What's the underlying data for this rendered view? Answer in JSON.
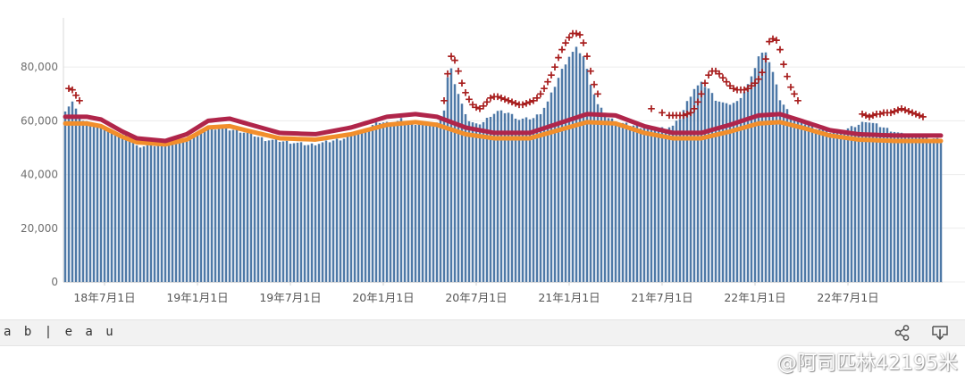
{
  "chart_data": {
    "type": "bar",
    "title": "",
    "xlabel": "",
    "ylabel": "",
    "ylim": [
      0,
      95000
    ],
    "yticks": [
      0,
      20000,
      40000,
      60000,
      80000
    ],
    "ytick_labels": [
      "0",
      "20,000",
      "40,000",
      "60,000",
      "80,000"
    ],
    "xtick_labels": [
      "18年7月1日",
      "19年1月1日",
      "19年7月1日",
      "20年1月1日",
      "20年7月1日",
      "21年1月1日",
      "21年7月1日",
      "22年1月1日",
      "22年7月1日"
    ],
    "xtick_positions": [
      11,
      37,
      63,
      89,
      115,
      141,
      167,
      193,
      219
    ],
    "grid": "horizontal",
    "n_weeks": 246,
    "colors": {
      "bars": "#4e79a7",
      "upper_line": "#b0254a",
      "lower_line": "#f28e2b",
      "markers": "#a81e1e"
    },
    "weekly_deaths_anchors": [
      [
        0,
        64000
      ],
      [
        2,
        67000
      ],
      [
        3,
        64000
      ],
      [
        5,
        60000
      ],
      [
        9,
        58000
      ],
      [
        14,
        56000
      ],
      [
        19,
        53000
      ],
      [
        20,
        50500
      ],
      [
        24,
        50800
      ],
      [
        30,
        51500
      ],
      [
        36,
        54000
      ],
      [
        40,
        57500
      ],
      [
        44,
        57000
      ],
      [
        48,
        56500
      ],
      [
        52,
        55000
      ],
      [
        56,
        53000
      ],
      [
        60,
        52500
      ],
      [
        66,
        51500
      ],
      [
        68,
        51000
      ],
      [
        72,
        51800
      ],
      [
        78,
        53500
      ],
      [
        84,
        57000
      ],
      [
        88,
        59500
      ],
      [
        92,
        59000
      ],
      [
        94,
        60500
      ],
      [
        98,
        59000
      ],
      [
        102,
        58500
      ],
      [
        104,
        59000
      ],
      [
        106,
        64000
      ],
      [
        107,
        76000
      ],
      [
        108,
        79000
      ],
      [
        109,
        74000
      ],
      [
        111,
        66000
      ],
      [
        113,
        60000
      ],
      [
        115,
        58500
      ],
      [
        117,
        59500
      ],
      [
        119,
        62000
      ],
      [
        121,
        63500
      ],
      [
        124,
        63000
      ],
      [
        127,
        60500
      ],
      [
        131,
        61000
      ],
      [
        133,
        63000
      ],
      [
        135,
        67000
      ],
      [
        137,
        73000
      ],
      [
        139,
        79000
      ],
      [
        141,
        84000
      ],
      [
        143,
        87000
      ],
      [
        145,
        84000
      ],
      [
        147,
        74000
      ],
      [
        149,
        66000
      ],
      [
        152,
        61000
      ],
      [
        156,
        59000
      ],
      [
        162,
        57500
      ],
      [
        166,
        57000
      ],
      [
        170,
        58000
      ],
      [
        172,
        61000
      ],
      [
        174,
        67000
      ],
      [
        176,
        72000
      ],
      [
        178,
        74000
      ],
      [
        180,
        72000
      ],
      [
        182,
        68000
      ],
      [
        185,
        66000
      ],
      [
        188,
        67000
      ],
      [
        190,
        71000
      ],
      [
        192,
        76000
      ],
      [
        194,
        84000
      ],
      [
        196,
        86000
      ],
      [
        198,
        78000
      ],
      [
        200,
        68000
      ],
      [
        203,
        62000
      ],
      [
        207,
        59000
      ],
      [
        211,
        57000
      ],
      [
        215,
        55500
      ],
      [
        219,
        57000
      ],
      [
        222,
        58500
      ],
      [
        224,
        60000
      ],
      [
        227,
        58500
      ],
      [
        230,
        57000
      ],
      [
        234,
        55000
      ],
      [
        238,
        54500
      ],
      [
        245,
        53000
      ]
    ],
    "upper_threshold_anchors": [
      [
        0,
        61500
      ],
      [
        6,
        61500
      ],
      [
        10,
        60500
      ],
      [
        16,
        56000
      ],
      [
        20,
        53500
      ],
      [
        28,
        52500
      ],
      [
        34,
        55000
      ],
      [
        40,
        60000
      ],
      [
        46,
        60800
      ],
      [
        52,
        58500
      ],
      [
        60,
        55500
      ],
      [
        70,
        55000
      ],
      [
        80,
        57500
      ],
      [
        90,
        61500
      ],
      [
        98,
        62500
      ],
      [
        104,
        61500
      ],
      [
        112,
        57500
      ],
      [
        120,
        55500
      ],
      [
        130,
        55500
      ],
      [
        138,
        59000
      ],
      [
        146,
        62500
      ],
      [
        154,
        62000
      ],
      [
        162,
        58000
      ],
      [
        170,
        55500
      ],
      [
        178,
        55500
      ],
      [
        186,
        58500
      ],
      [
        194,
        62000
      ],
      [
        200,
        62500
      ],
      [
        206,
        60000
      ],
      [
        214,
        56500
      ],
      [
        222,
        55000
      ],
      [
        232,
        54500
      ],
      [
        245,
        54500
      ]
    ],
    "lower_threshold_anchors": [
      [
        0,
        59000
      ],
      [
        6,
        59000
      ],
      [
        10,
        58000
      ],
      [
        16,
        54000
      ],
      [
        20,
        52000
      ],
      [
        28,
        51200
      ],
      [
        34,
        53000
      ],
      [
        40,
        57500
      ],
      [
        46,
        58000
      ],
      [
        52,
        56000
      ],
      [
        60,
        53500
      ],
      [
        70,
        53000
      ],
      [
        80,
        55000
      ],
      [
        90,
        58500
      ],
      [
        98,
        59500
      ],
      [
        104,
        58500
      ],
      [
        112,
        55000
      ],
      [
        120,
        53500
      ],
      [
        130,
        53500
      ],
      [
        138,
        56500
      ],
      [
        146,
        59500
      ],
      [
        154,
        59000
      ],
      [
        162,
        55500
      ],
      [
        170,
        53500
      ],
      [
        178,
        53500
      ],
      [
        186,
        56000
      ],
      [
        194,
        59000
      ],
      [
        200,
        59500
      ],
      [
        206,
        57500
      ],
      [
        214,
        54500
      ],
      [
        222,
        53000
      ],
      [
        232,
        52500
      ],
      [
        245,
        52500
      ]
    ],
    "excess_marker_anchors": [
      [
        [
          1,
          72000
        ],
        [
          2,
          71500
        ],
        [
          3,
          69500
        ],
        [
          4,
          67500
        ]
      ],
      [
        [
          106,
          67500
        ],
        [
          107,
          77500
        ],
        [
          108,
          84000
        ],
        [
          109,
          82500
        ],
        [
          110,
          78500
        ],
        [
          111,
          74000
        ],
        [
          112,
          70500
        ],
        [
          113,
          68000
        ],
        [
          114,
          66000
        ],
        [
          115,
          65000
        ],
        [
          116,
          64500
        ],
        [
          117,
          65500
        ],
        [
          118,
          67000
        ],
        [
          119,
          68500
        ],
        [
          120,
          69000
        ],
        [
          121,
          69000
        ],
        [
          122,
          68500
        ],
        [
          123,
          68000
        ],
        [
          124,
          67500
        ],
        [
          125,
          67000
        ],
        [
          126,
          66500
        ],
        [
          127,
          66000
        ],
        [
          128,
          66000
        ],
        [
          129,
          66500
        ],
        [
          130,
          67000
        ],
        [
          131,
          67500
        ],
        [
          132,
          68500
        ],
        [
          133,
          70000
        ],
        [
          134,
          72000
        ],
        [
          135,
          74500
        ],
        [
          136,
          77000
        ],
        [
          137,
          80000
        ],
        [
          138,
          83500
        ],
        [
          139,
          86500
        ],
        [
          140,
          89000
        ],
        [
          141,
          91000
        ],
        [
          142,
          92500
        ],
        [
          143,
          92500
        ],
        [
          144,
          92000
        ],
        [
          145,
          89000
        ],
        [
          146,
          84000
        ],
        [
          147,
          78500
        ],
        [
          148,
          73500
        ],
        [
          149,
          70000
        ]
      ],
      [
        [
          164,
          64500
        ],
        [
          167,
          63000
        ],
        [
          169,
          62000
        ],
        [
          170,
          62000
        ],
        [
          171,
          62000
        ],
        [
          172,
          62000
        ],
        [
          173,
          62000
        ],
        [
          174,
          62500
        ],
        [
          175,
          63000
        ],
        [
          176,
          64500
        ],
        [
          177,
          67000
        ],
        [
          178,
          70000
        ],
        [
          179,
          74000
        ],
        [
          180,
          77000
        ],
        [
          181,
          78500
        ],
        [
          182,
          78500
        ],
        [
          183,
          77500
        ],
        [
          184,
          76000
        ],
        [
          185,
          74500
        ],
        [
          186,
          73000
        ],
        [
          187,
          72000
        ],
        [
          188,
          71500
        ],
        [
          189,
          71500
        ],
        [
          190,
          71500
        ],
        [
          191,
          72000
        ],
        [
          192,
          73000
        ],
        [
          193,
          74000
        ],
        [
          194,
          75500
        ],
        [
          195,
          78000
        ],
        [
          196,
          83000
        ],
        [
          197,
          89500
        ],
        [
          198,
          90500
        ],
        [
          199,
          90000
        ],
        [
          200,
          86500
        ],
        [
          201,
          81000
        ],
        [
          202,
          76500
        ],
        [
          203,
          72500
        ],
        [
          204,
          70000
        ],
        [
          205,
          67500
        ]
      ],
      [
        [
          223,
          62500
        ],
        [
          224,
          62000
        ],
        [
          225,
          61500
        ],
        [
          226,
          62000
        ],
        [
          227,
          62500
        ],
        [
          228,
          62500
        ],
        [
          229,
          63000
        ],
        [
          230,
          63000
        ],
        [
          231,
          63000
        ],
        [
          232,
          63500
        ],
        [
          233,
          64000
        ],
        [
          234,
          64500
        ],
        [
          235,
          64000
        ],
        [
          236,
          63500
        ],
        [
          237,
          63000
        ],
        [
          238,
          62500
        ],
        [
          239,
          62000
        ],
        [
          240,
          61500
        ]
      ]
    ]
  },
  "toolbar": {
    "logo_text": "a b | e a u"
  },
  "watermark": {
    "text": "@阿司匹林42195米"
  }
}
